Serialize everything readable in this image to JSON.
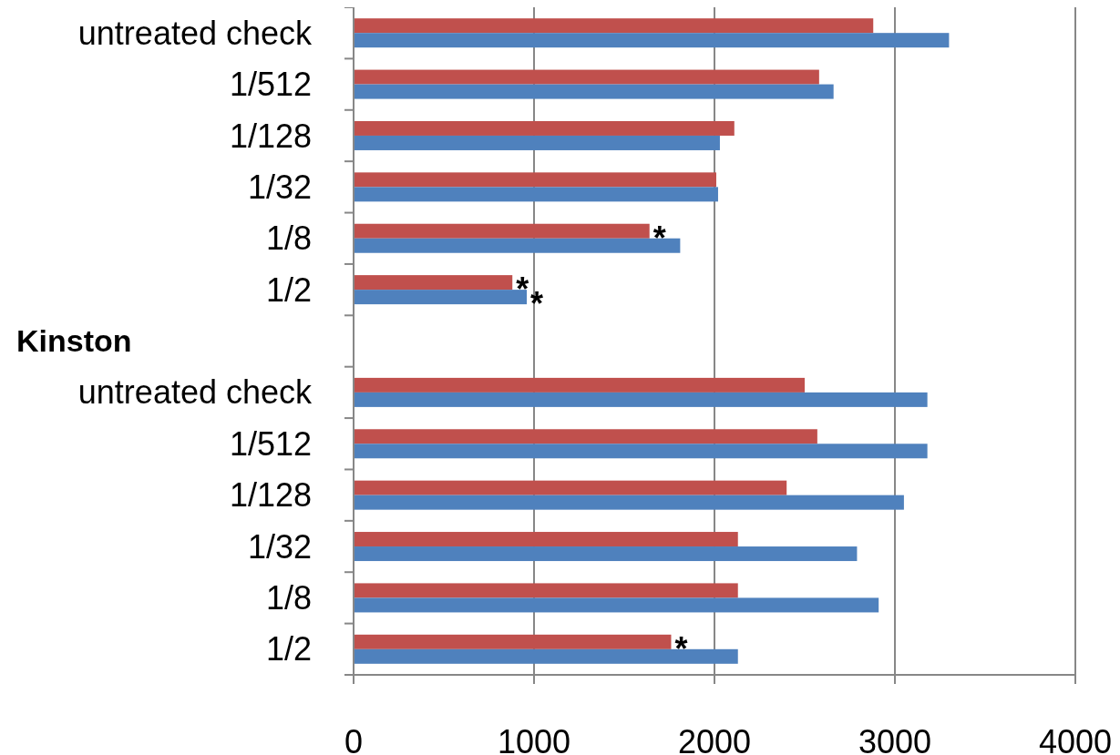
{
  "chart_data": {
    "type": "bar",
    "orientation": "horizontal",
    "categories": [
      "untreated check",
      "1/512",
      "1/128",
      "1/32",
      "1/8",
      "1/2",
      null,
      "untreated check",
      "1/512",
      "1/128",
      "1/32",
      "1/8",
      "1/2"
    ],
    "series": [
      {
        "color": "#c0504d",
        "values": [
          2880,
          2580,
          2110,
          2010,
          1640,
          880,
          null,
          2500,
          2570,
          2400,
          2130,
          2130,
          1760
        ]
      },
      {
        "color": "#4f81bd",
        "values": [
          3300,
          2660,
          2030,
          2020,
          1810,
          960,
          null,
          3180,
          3180,
          3050,
          2790,
          2910,
          2130
        ]
      }
    ],
    "xlim": [
      0,
      4000
    ],
    "xticks": [
      0,
      1000,
      2000,
      3000,
      4000
    ],
    "grid": "x",
    "annotations": [
      {
        "text": "*",
        "x": 1640,
        "y": "1/8"
      },
      {
        "text": "*",
        "x": 880,
        "y": "1/2"
      },
      {
        "text": "*",
        "x": 960,
        "y": "1/2"
      },
      {
        "text": "*",
        "x": 1760
      },
      "Kinston"
    ]
  }
}
